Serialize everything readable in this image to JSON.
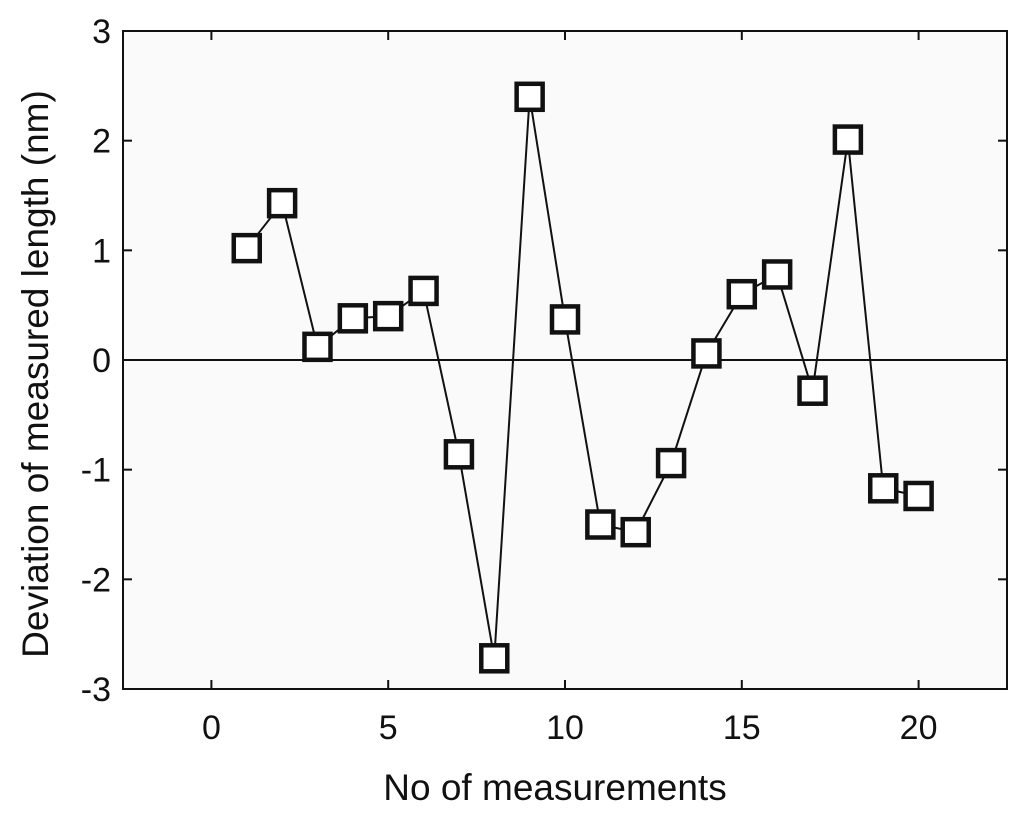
{
  "chart_data": {
    "type": "line",
    "title": "",
    "xlabel": "No of measurements",
    "ylabel": "Deviation of measured length (nm)",
    "xlim": [
      -2.5,
      22.5
    ],
    "ylim": [
      -3,
      3
    ],
    "xticks": [
      0,
      5,
      10,
      15,
      20
    ],
    "yticks": [
      -3,
      -2,
      -1,
      0,
      1,
      2,
      3
    ],
    "xtick_labels": [
      "0",
      "5",
      "10",
      "15",
      "20"
    ],
    "ytick_labels": [
      "-3",
      "-2",
      "-1",
      "0",
      "1",
      "2",
      "3"
    ],
    "grid": false,
    "zero_line": true,
    "marker": "open-square",
    "series": [
      {
        "x": [
          1,
          2,
          3,
          4,
          5,
          6,
          7,
          8,
          9,
          10,
          11,
          12,
          13,
          14,
          15,
          16,
          17,
          18,
          19,
          20
        ],
        "values": [
          1.02,
          1.43,
          0.12,
          0.38,
          0.4,
          0.63,
          -0.86,
          -2.72,
          2.4,
          0.37,
          -1.5,
          -1.57,
          -0.94,
          0.06,
          0.6,
          0.78,
          -0.28,
          2.01,
          -1.17,
          -1.24
        ]
      }
    ],
    "colors": {
      "plot_background": "#fafafa",
      "frame": "#111111",
      "line": "#111111",
      "marker_stroke": "#111111",
      "marker_fill": "#ffffff"
    }
  }
}
